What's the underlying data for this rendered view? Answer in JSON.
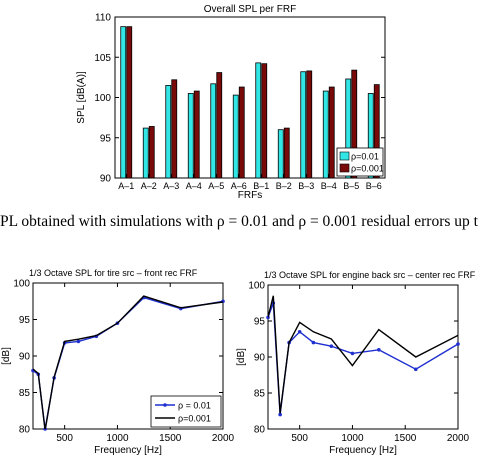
{
  "caption": {
    "text": "PL obtained with simulations with ρ = 0.01 and ρ = 0.001 residual errors up t"
  },
  "chart_data": [
    {
      "type": "bar",
      "title": "Overall SPL per FRF",
      "xlabel": "FRFs",
      "ylabel": "SPL [dB(A)]",
      "ylim": [
        90,
        110
      ],
      "yticks": [
        90,
        95,
        100,
        105,
        110
      ],
      "categories": [
        "A–1",
        "A–2",
        "A–3",
        "A–4",
        "A–5",
        "A–6",
        "B–1",
        "B–2",
        "B–3",
        "B–4",
        "B–5",
        "B–6"
      ],
      "series": [
        {
          "name": "ρ=0.01",
          "color": "#33e6e6",
          "values": [
            108.8,
            96.2,
            101.5,
            100.5,
            101.7,
            100.3,
            104.3,
            96.0,
            103.2,
            100.8,
            102.3,
            100.5
          ]
        },
        {
          "name": "ρ=0.001",
          "color": "#7a0a0a",
          "values": [
            108.8,
            96.4,
            102.2,
            100.8,
            103.1,
            101.3,
            104.2,
            96.2,
            103.3,
            101.3,
            103.4,
            101.6
          ]
        }
      ],
      "legend": "bottom-right",
      "grid": false
    },
    {
      "type": "line",
      "title": "1/3 Octave SPL for tire src – front rec FRF",
      "xlabel": "Frequency [Hz]",
      "ylabel": "[dB]",
      "xlim": [
        200,
        2000
      ],
      "ylim": [
        80,
        100
      ],
      "xticks": [
        500,
        1000,
        1500,
        2000
      ],
      "yticks": [
        80,
        85,
        90,
        95,
        100
      ],
      "x": [
        200,
        250,
        315,
        400,
        500,
        630,
        800,
        1000,
        1250,
        1600,
        2000
      ],
      "series": [
        {
          "name": "ρ = 0.01",
          "color": "#1f2fd0",
          "marker": "dot",
          "values": [
            88.0,
            87.5,
            80.0,
            87.0,
            91.8,
            92.0,
            92.7,
            94.5,
            98.0,
            96.5,
            97.5
          ]
        },
        {
          "name": "ρ=0.001",
          "color": "#000000",
          "values": [
            88.2,
            87.6,
            79.8,
            87.1,
            92.0,
            92.3,
            92.8,
            94.5,
            98.2,
            96.6,
            97.4
          ]
        }
      ],
      "legend": "bottom-right",
      "grid": false
    },
    {
      "type": "line",
      "title": "1/3 Octave SPL for engine back src – center rec FRF",
      "xlabel": "Frequency [Hz]",
      "ylabel": "[dB]",
      "xlim": [
        200,
        2000
      ],
      "ylim": [
        80,
        100
      ],
      "xticks": [
        500,
        1000,
        1500,
        2000
      ],
      "yticks": [
        80,
        85,
        90,
        95,
        100
      ],
      "x": [
        200,
        250,
        315,
        400,
        500,
        630,
        800,
        1000,
        1250,
        1600,
        2000
      ],
      "series": [
        {
          "name": "ρ = 0.01",
          "color": "#1f2fd0",
          "marker": "dot",
          "values": [
            95.5,
            97.5,
            82.0,
            92.0,
            93.5,
            92.0,
            91.5,
            90.5,
            91.0,
            88.3,
            91.8
          ]
        },
        {
          "name": "ρ=0.001",
          "color": "#000000",
          "values": [
            95.5,
            98.5,
            82.2,
            92.0,
            94.8,
            93.5,
            92.5,
            88.8,
            93.8,
            90.0,
            93.0
          ]
        }
      ],
      "grid": false
    }
  ]
}
